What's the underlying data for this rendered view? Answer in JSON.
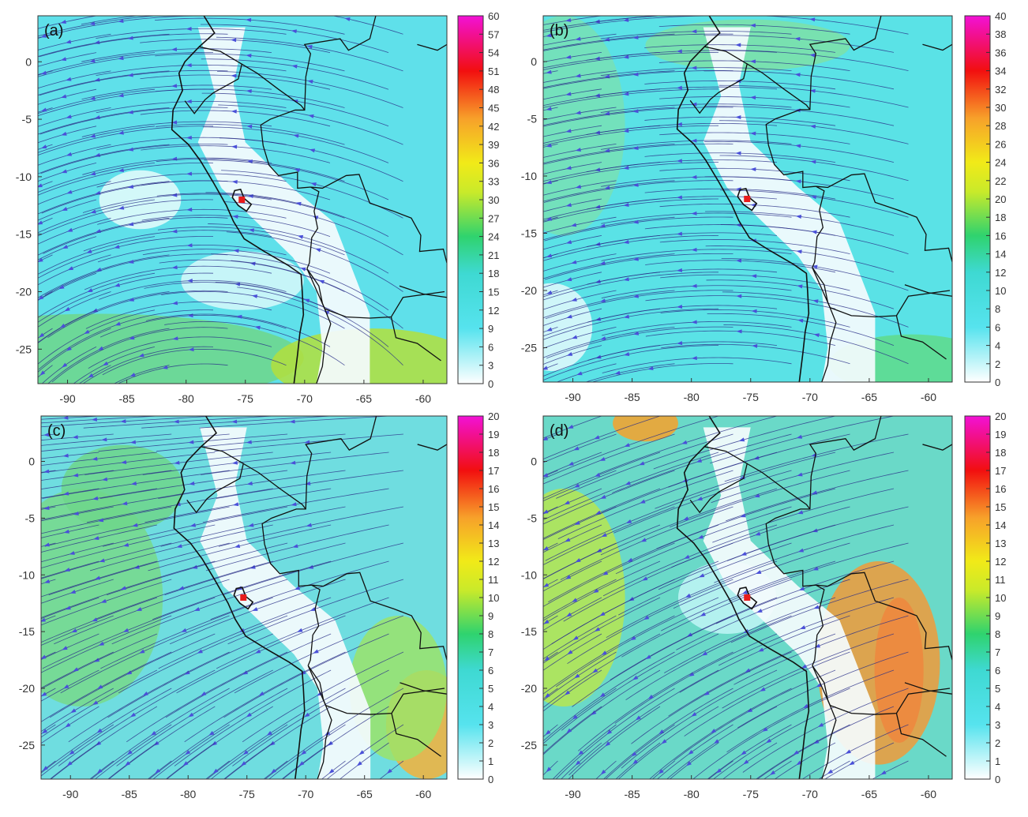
{
  "panels": [
    {
      "label": "(a)",
      "colorbar": {
        "min": 0,
        "max": 60,
        "ticks": [
          "0",
          "3",
          "6",
          "9",
          "12",
          "15",
          "18",
          "21",
          "24",
          "27",
          "30",
          "33",
          "36",
          "39",
          "42",
          "45",
          "48",
          "51",
          "54",
          "57",
          "60"
        ]
      },
      "x_ticks": [
        "-90",
        "-85",
        "-80",
        "-75",
        "-70",
        "-65",
        "-60"
      ],
      "y_ticks": [
        "0",
        "-5",
        "-10",
        "-15",
        "-20",
        "-25"
      ]
    },
    {
      "label": "(b)",
      "colorbar": {
        "min": 0,
        "max": 40,
        "ticks": [
          "0",
          "2",
          "4",
          "6",
          "8",
          "10",
          "12",
          "14",
          "16",
          "18",
          "20",
          "22",
          "24",
          "26",
          "28",
          "30",
          "32",
          "34",
          "36",
          "38",
          "40"
        ]
      },
      "x_ticks": [
        "-90",
        "-85",
        "-80",
        "-75",
        "-70",
        "-65",
        "-60"
      ],
      "y_ticks": [
        "0",
        "-5",
        "-10",
        "-15",
        "-20",
        "-25"
      ]
    },
    {
      "label": "(c)",
      "colorbar": {
        "min": 0,
        "max": 20,
        "ticks": [
          "0",
          "1",
          "2",
          "3",
          "4",
          "5",
          "6",
          "7",
          "8",
          "9",
          "10",
          "11",
          "12",
          "13",
          "14",
          "15",
          "16",
          "17",
          "18",
          "19",
          "20"
        ]
      },
      "x_ticks": [
        "-90",
        "-85",
        "-80",
        "-75",
        "-70",
        "-65",
        "-60"
      ],
      "y_ticks": [
        "0",
        "-5",
        "-10",
        "-15",
        "-20",
        "-25"
      ]
    },
    {
      "label": "(d)",
      "colorbar": {
        "min": 0,
        "max": 20,
        "ticks": [
          "0",
          "1",
          "2",
          "3",
          "4",
          "5",
          "6",
          "7",
          "8",
          "9",
          "10",
          "11",
          "12",
          "13",
          "14",
          "15",
          "16",
          "17",
          "18",
          "19",
          "20"
        ]
      },
      "x_ticks": [
        "-90",
        "-85",
        "-80",
        "-75",
        "-70",
        "-65",
        "-60"
      ],
      "y_ticks": [
        "0",
        "-5",
        "-10",
        "-15",
        "-20",
        "-25"
      ]
    }
  ],
  "map_extent": {
    "lon": [
      -92.5,
      -58
    ],
    "lat": [
      -28,
      4
    ]
  },
  "marker": {
    "lon": -75.3,
    "lat": -12.0,
    "color": "#e81c1c"
  },
  "colors": {
    "colormap": [
      "#ffffff",
      "#56e3ee",
      "#2fd36e",
      "#f1ea18",
      "#f7a12a",
      "#f20f0f",
      "#f211d6"
    ],
    "streamline": "#2a2f88",
    "arrow": "#4a50d8",
    "border": "#111111"
  }
}
